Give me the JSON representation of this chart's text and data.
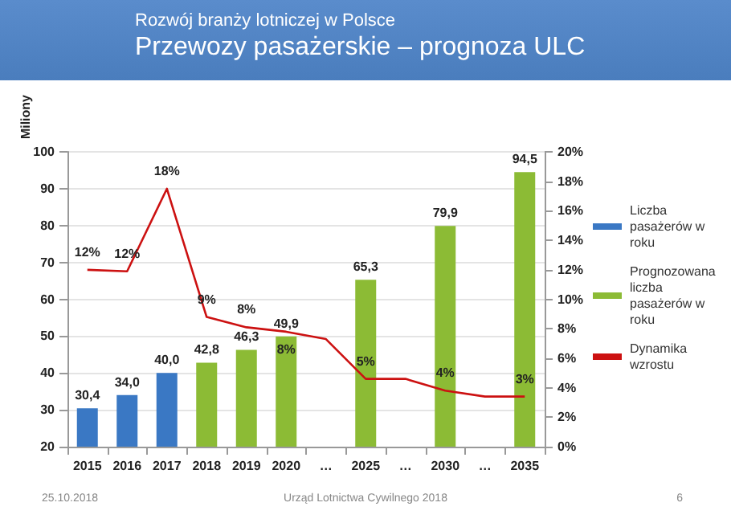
{
  "chart_data": {
    "type": "bar",
    "title": "Przewozy pasażerskie – prognoza ULC",
    "subtitle": "Rozwój branży lotniczej w Polsce",
    "ylabel": "Miliony",
    "categories": [
      "2015",
      "2016",
      "2017",
      "2018",
      "2019",
      "2020",
      "…",
      "2025",
      "…",
      "2030",
      "…",
      "2035"
    ],
    "series": [
      {
        "name": "Liczba pasażerów w roku",
        "color": "#3a78c4",
        "values": [
          30.4,
          34.0,
          40.0,
          null,
          null,
          null,
          null,
          null,
          null,
          null,
          null,
          null
        ],
        "value_labels": [
          "30,4",
          "34,0",
          "40,0",
          null,
          null,
          null,
          null,
          null,
          null,
          null,
          null,
          null
        ]
      },
      {
        "name": "Prognozowana liczba pasażerów w roku",
        "color": "#8cbb35",
        "values": [
          null,
          null,
          null,
          42.8,
          46.3,
          49.9,
          null,
          65.3,
          null,
          79.9,
          null,
          94.5
        ],
        "value_labels": [
          null,
          null,
          null,
          "42,8",
          "46,3",
          "49,9",
          null,
          "65,3",
          null,
          "79,9",
          null,
          "94,5"
        ]
      },
      {
        "name": "Dynamika wzrostu",
        "type": "line",
        "axis": "y2",
        "color": "#cc1111",
        "marker": "none",
        "values": [
          12.0,
          11.9,
          17.5,
          8.8,
          8.1,
          7.8,
          7.3,
          4.6,
          4.6,
          3.8,
          3.4,
          3.4
        ],
        "value_labels": [
          "12%",
          "12%",
          "18%",
          "9%",
          "8%",
          "8%",
          null,
          "5%",
          null,
          "4%",
          null,
          "3%"
        ]
      }
    ],
    "ylim": [
      20,
      100
    ],
    "yticks": [
      20,
      30,
      40,
      50,
      60,
      70,
      80,
      90,
      100
    ],
    "y2lim": [
      0,
      20
    ],
    "y2ticks": [
      {
        "value": 0,
        "label": "0%"
      },
      {
        "value": 2,
        "label": "2%"
      },
      {
        "value": 4,
        "label": "4%"
      },
      {
        "value": 6,
        "label": "6%"
      },
      {
        "value": 8,
        "label": "8%"
      },
      {
        "value": 10,
        "label": "10%"
      },
      {
        "value": 12,
        "label": "12%"
      },
      {
        "value": 14,
        "label": "14%"
      },
      {
        "value": 16,
        "label": "16%"
      },
      {
        "value": 18,
        "label": "18%"
      },
      {
        "value": 20,
        "label": "20%"
      }
    ],
    "grid": "y",
    "legend": "right",
    "annotations": [
      "25.10.2018",
      "Urząd Lotnictwa Cywilnego 2018",
      "6"
    ]
  }
}
